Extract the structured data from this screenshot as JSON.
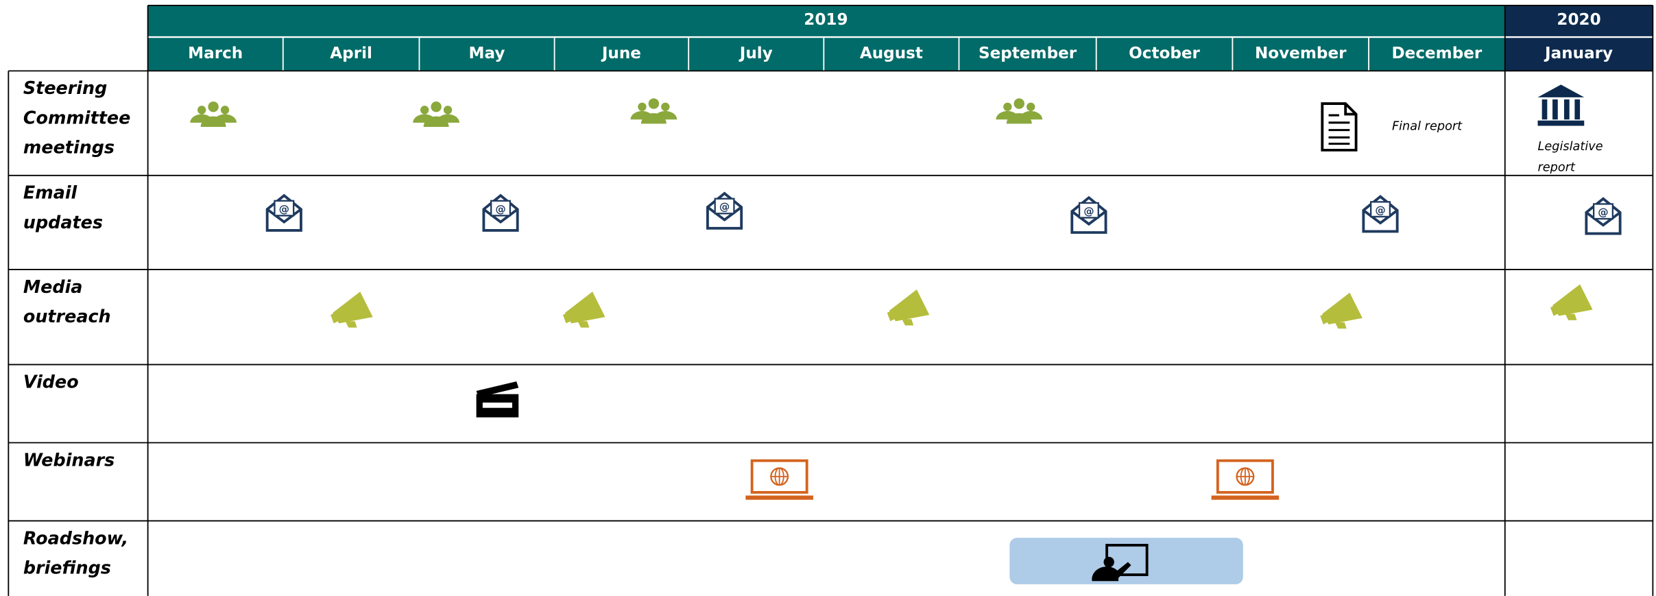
{
  "header": {
    "years": [
      "2019",
      "2020"
    ],
    "months": [
      "March",
      "April",
      "May",
      "June",
      "July",
      "August",
      "September",
      "October",
      "November",
      "December",
      "January"
    ]
  },
  "rows": [
    {
      "label": "Steering Committee meetings",
      "notes": [
        "Final report",
        "Legislative report"
      ]
    },
    {
      "label": "Email updates"
    },
    {
      "label": "Media outreach"
    },
    {
      "label": "Video"
    },
    {
      "label": "Webinars"
    },
    {
      "label": "Roadshow, briefings"
    }
  ]
}
